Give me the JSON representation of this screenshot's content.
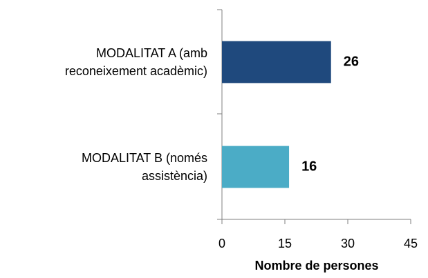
{
  "chart_data": {
    "type": "bar",
    "orientation": "horizontal",
    "categories": [
      "MODALITAT A (amb reconeixement acadèmic)",
      "MODALITAT B (només assistència)"
    ],
    "values": [
      26,
      16
    ],
    "colors": [
      "#1f497d",
      "#4bacc6"
    ],
    "xlim": [
      0,
      45
    ],
    "xticks": [
      0,
      15,
      30,
      45
    ],
    "xlabel": "Nombre de persones",
    "grid": false
  }
}
